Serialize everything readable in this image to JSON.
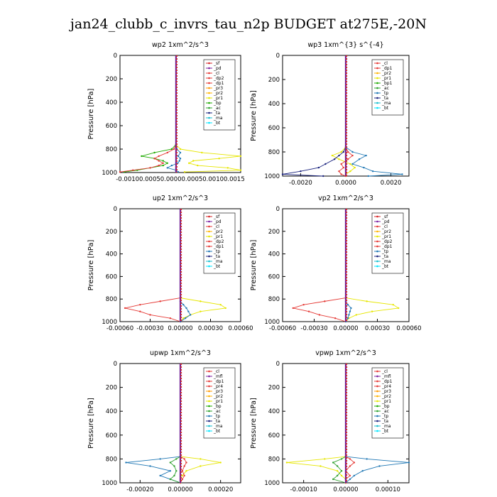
{
  "figure": {
    "suptitle": "jan24_clubb_c_invrs_tau_n2p  BUDGET at275E,-20N"
  },
  "colors": {
    "sf": "#d62728",
    "pd": "#7b1fa2",
    "cl": "#e53935",
    "dp2": "#e53935",
    "dp1": "#e53935",
    "pr3": "#ff9800",
    "pr2": "#ffb300",
    "pr1": "#e6e600",
    "bp": "#1faa00",
    "ac": "#2ca02c",
    "tp": "#1f77b4",
    "ta": "#1a237e",
    "ma": "#17becf",
    "bt": "#00e5ff",
    "mfl": "#7b1fa2",
    "pr4": "#e53935"
  },
  "chart_data": [
    {
      "type": "line",
      "title": "wp2  1xm^2/s^3",
      "ylabel": "Pressure [hPa]",
      "ylim": [
        1000,
        0
      ],
      "xlim": [
        -0.0013,
        0.0015
      ],
      "xticklabels": [
        "-0.00100.00050.00000.00050.00100.0015"
      ],
      "yticks": [
        0,
        200,
        400,
        600,
        800,
        1000
      ],
      "legend": [
        "_sf",
        "_pd",
        "_cl",
        "_dp2",
        "_dp1",
        "_pr3",
        "_pr2",
        "_pr1",
        "_bp",
        "_ac",
        "_ta",
        "_ma",
        "_bt"
      ],
      "legend_position": "top-right",
      "pressure": [
        760,
        800,
        830,
        860,
        880,
        900,
        920,
        940,
        960,
        980,
        995
      ],
      "series": [
        {
          "name": "_pr1",
          "values": [
            0,
            0.0001,
            0.0006,
            0.0015,
            0.001,
            0.0004,
            0.0003,
            0.0005,
            0.0012,
            0.0015,
            0.0002
          ]
        },
        {
          "name": "_bp",
          "values": [
            0,
            -0.0001,
            -0.0005,
            -0.0008,
            -0.0005,
            -0.0003,
            -0.0002,
            -0.0003,
            -0.0006,
            -0.0009,
            -0.0012
          ]
        },
        {
          "name": "_dp1",
          "values": [
            0,
            -5e-05,
            -0.0002,
            -0.0004,
            -0.0005,
            -0.0004,
            -0.0003,
            -0.0004,
            -0.0006,
            -0.001,
            -0.0013
          ]
        },
        {
          "name": "_tp",
          "values": [
            0,
            2e-05,
            0.0001,
            5e-05,
            0.0001,
            8e-05,
            4e-05,
            -0.0001,
            -0.0002,
            0,
            5e-05
          ]
        }
      ]
    },
    {
      "type": "line",
      "title": "wp3  1xm^{3} s^{-4}",
      "ylabel": "Pressure [hPa]",
      "ylim": [
        1000,
        0
      ],
      "xlim": [
        -0.0028,
        0.0028
      ],
      "xticks": [
        -0.002,
        0,
        0.002
      ],
      "xticklabels": [
        "-0.0020",
        "0.0000",
        "0.0020"
      ],
      "yticks": [
        0,
        200,
        400,
        600,
        800,
        1000
      ],
      "legend": [
        "_cl",
        "_dp1",
        "_pr2",
        "_pr1",
        "_bp1",
        "_ac",
        "_tp",
        "_ta",
        "_ma",
        "_bt"
      ],
      "legend_position": "top-right",
      "pressure": [
        760,
        800,
        830,
        860,
        900,
        930,
        960,
        985,
        1000
      ],
      "series": [
        {
          "name": "_pr1",
          "values": [
            0,
            -0.0002,
            -0.0006,
            -0.0003,
            0.0002,
            0.0004,
            0.0002,
            0,
            0
          ]
        },
        {
          "name": "_tp",
          "values": [
            0,
            0.0003,
            0.0009,
            0.0006,
            0.0003,
            0.0008,
            0.0012,
            0.0025,
            0.001
          ]
        },
        {
          "name": "_ta",
          "values": [
            0,
            -0.0001,
            -0.0003,
            -0.0005,
            -0.0009,
            -0.0012,
            -0.002,
            -0.0028,
            -0.001
          ]
        },
        {
          "name": "_dp1",
          "values": [
            0,
            0.0001,
            0.0003,
            0.0001,
            -0.0002,
            -0.0001,
            -0.0003,
            -0.0002,
            0
          ]
        }
      ]
    },
    {
      "type": "line",
      "title": "up2  1xm^2/s^3",
      "ylabel": "Pressure [hPa]",
      "ylim": [
        1000,
        0
      ],
      "xlim": [
        -0.0006,
        0.0006
      ],
      "xticks": [
        -0.0006,
        -0.0003,
        0,
        0.0003,
        0.0006
      ],
      "xticklabels": [
        "-0.00060",
        "-0.00030",
        "0.00000",
        "0.00030",
        "0.00060"
      ],
      "yticks": [
        0,
        200,
        400,
        600,
        800,
        1000
      ],
      "legend": [
        "_sf",
        "_pd",
        "_cl",
        "_pr2",
        "_pr1",
        "_dp2",
        "_dp1",
        "_tp",
        "_ta",
        "_ma",
        "_bt"
      ],
      "legend_position": "top-right",
      "pressure": [
        790,
        820,
        850,
        880,
        910,
        940,
        970,
        1000
      ],
      "series": [
        {
          "name": "_pr1",
          "values": [
            0,
            0.0002,
            0.0004,
            0.00045,
            0.0002,
            0.0001,
            3e-05,
            0
          ]
        },
        {
          "name": "_dp1",
          "values": [
            0,
            -0.0002,
            -0.0004,
            -0.00055,
            -0.0004,
            -0.0003,
            -0.0001,
            0
          ]
        },
        {
          "name": "_tp",
          "values": [
            0,
            0,
            3e-05,
            6e-05,
            8e-05,
            0.0001,
            5e-05,
            0
          ]
        }
      ]
    },
    {
      "type": "line",
      "title": "vp2  1xm^2/s^3",
      "ylabel": "Pressure [hPa]",
      "ylim": [
        1000,
        0
      ],
      "xlim": [
        -0.0006,
        0.0006
      ],
      "xticks": [
        -0.0006,
        -0.0003,
        0,
        0.0003,
        0.0006
      ],
      "xticklabels": [
        "-0.00060",
        "-0.00030",
        "0.00000",
        "0.00030",
        "0.00060"
      ],
      "yticks": [
        0,
        200,
        400,
        600,
        800,
        1000
      ],
      "legend": [
        "_sf",
        "_pd",
        "_cl",
        "_pr2",
        "_pr1",
        "_dp2",
        "_dp1",
        "_tp",
        "_ta",
        "_ma",
        "_bt"
      ],
      "legend_position": "top-right",
      "pressure": [
        790,
        820,
        850,
        880,
        910,
        940,
        970,
        1000
      ],
      "series": [
        {
          "name": "_pr1",
          "values": [
            0,
            0.0002,
            0.00045,
            0.0005,
            0.00025,
            0.0001,
            3e-05,
            0
          ]
        },
        {
          "name": "_dp1",
          "values": [
            0,
            -0.0002,
            -0.0004,
            -0.0005,
            -0.00035,
            -0.00025,
            -0.0001,
            0
          ]
        },
        {
          "name": "_tp",
          "values": [
            0,
            0,
            2e-05,
            5e-05,
            4e-05,
            3e-05,
            2e-05,
            0
          ]
        }
      ]
    },
    {
      "type": "line",
      "title": "upwp  1xm^2/s^3",
      "ylabel": "Pressure [hPa]",
      "ylim": [
        1000,
        0
      ],
      "xlim": [
        -0.0003,
        0.0003
      ],
      "xticks": [
        -0.0002,
        0,
        0.0002
      ],
      "xticklabels": [
        "-0.00020",
        "0.00000",
        "0.00020"
      ],
      "yticks": [
        0,
        200,
        400,
        600,
        800,
        1000
      ],
      "legend": [
        "_cl",
        "_mfl",
        "_dp1",
        "_pr4",
        "_pr3",
        "_pr2",
        "_pr1",
        "_bp",
        "_ac",
        "_tp",
        "_ta",
        "_ma",
        "_bt"
      ],
      "legend_position": "top-right",
      "pressure": [
        780,
        800,
        830,
        860,
        900,
        940,
        970,
        1000
      ],
      "series": [
        {
          "name": "_pr1",
          "values": [
            0,
            0.0001,
            0.0002,
            0.0001,
            3e-05,
            1e-05,
            0,
            0
          ]
        },
        {
          "name": "_tp",
          "values": [
            0,
            -0.0001,
            -0.00027,
            -0.00015,
            -5e-05,
            -0.0001,
            -5e-05,
            0
          ]
        },
        {
          "name": "_ac",
          "values": [
            0,
            -2e-05,
            -5e-05,
            -3e-05,
            -2e-05,
            -3e-05,
            -5e-05,
            0
          ]
        },
        {
          "name": "_dp1",
          "values": [
            0,
            2e-05,
            3e-05,
            2e-05,
            1e-05,
            2e-05,
            1e-05,
            0
          ]
        }
      ]
    },
    {
      "type": "line",
      "title": "vpwp  1xm^2/s^3",
      "ylabel": "Pressure [hPa]",
      "ylim": [
        1000,
        0
      ],
      "xlim": [
        -0.00015,
        0.00015
      ],
      "xticks": [
        -0.0001,
        0,
        0.0001
      ],
      "xticklabels": [
        "-0.00010",
        "0.00000",
        "0.00010"
      ],
      "yticks": [
        0,
        200,
        400,
        600,
        800,
        1000
      ],
      "legend": [
        "_cl",
        "_mfl",
        "_dp1",
        "_pr4",
        "_pr3",
        "_pr2",
        "_pr1",
        "_bp",
        "_ac",
        "_tp",
        "_ta",
        "_ma",
        "_bt"
      ],
      "legend_position": "top-right",
      "pressure": [
        780,
        800,
        830,
        860,
        900,
        940,
        970,
        1000
      ],
      "series": [
        {
          "name": "_pr1",
          "values": [
            0,
            -5e-05,
            -0.00014,
            -6e-05,
            -2e-05,
            -1e-05,
            0,
            0
          ]
        },
        {
          "name": "_tp",
          "values": [
            0,
            5e-05,
            0.00015,
            8e-05,
            4e-05,
            2e-05,
            1e-05,
            0
          ]
        },
        {
          "name": "_ac",
          "values": [
            0,
            -1e-05,
            -3e-05,
            -2e-05,
            -1e-05,
            -2e-05,
            -3e-05,
            0
          ]
        },
        {
          "name": "_dp1",
          "values": [
            0,
            1e-05,
            2e-05,
            1e-05,
            0,
            1e-05,
            0,
            0
          ]
        }
      ]
    }
  ]
}
